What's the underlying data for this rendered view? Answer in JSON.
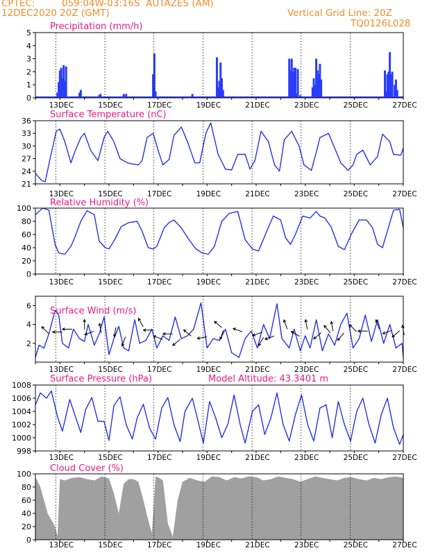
{
  "header": {
    "source": "CPTEC:",
    "location": "059:04W-03:16S  AUTAZES (AM)",
    "date": "12DEC2020 20Z (GMT)",
    "grid_note": "Vertical Grid Line: 20Z",
    "code": "TQ0126L028"
  },
  "x_dates": [
    "13DEC",
    "15DEC",
    "17DEC",
    "19DEC",
    "21DEC",
    "23DEC",
    "25DEC",
    "27DEC"
  ],
  "colors": {
    "line": "#2332e6",
    "bar": "#2a3cff",
    "cloud": "#a0a0a0",
    "title": "#e8188c",
    "header": "#f08c28"
  },
  "chart_data": [
    {
      "type": "bar",
      "title": "Precipitation (mm/h)",
      "ylim": [
        0,
        5
      ],
      "yticks": [
        0,
        1,
        2,
        3,
        4,
        5
      ],
      "x": [
        12.9,
        12.95,
        13.0,
        13.05,
        13.1,
        13.15,
        13.2,
        13.25,
        13.8,
        13.85,
        14.6,
        14.65,
        15.6,
        15.7,
        16.8,
        16.85,
        16.9,
        18.4,
        19.4,
        19.45,
        19.5,
        19.55,
        19.6,
        19.65,
        22.35,
        22.4,
        22.45,
        22.5,
        22.55,
        22.6,
        22.65,
        22.7,
        22.8,
        23.3,
        23.35,
        23.4,
        23.45,
        23.5,
        23.55,
        23.6,
        23.65,
        26.25,
        26.3,
        26.35,
        26.4,
        26.45,
        26.5,
        26.55,
        26.65,
        26.7,
        26.75
      ],
      "values": [
        0.4,
        1.2,
        2.1,
        2.3,
        1.5,
        2.5,
        1.3,
        2.4,
        0.4,
        0.6,
        0.2,
        0.3,
        0.3,
        0.3,
        1.8,
        3.4,
        0.5,
        0.3,
        3.1,
        0.8,
        1.3,
        2.7,
        1.5,
        0.6,
        3.0,
        2.1,
        3.0,
        2.0,
        2.3,
        2.3,
        0.3,
        2.2,
        0.2,
        0.8,
        1.5,
        1.0,
        3.0,
        2.1,
        1.8,
        2.6,
        1.4,
        2.1,
        0.5,
        1.8,
        2.0,
        3.5,
        1.8,
        2.0,
        1.0,
        1.4,
        0.6
      ]
    },
    {
      "type": "line",
      "title": "Surface Temperature (nC)",
      "ylim": [
        21,
        36
      ],
      "yticks": [
        21,
        24,
        27,
        30,
        33,
        36
      ],
      "x": [
        12.0,
        12.25,
        12.4,
        12.6,
        12.85,
        13.0,
        13.2,
        13.45,
        13.6,
        13.85,
        14.0,
        14.25,
        14.55,
        14.8,
        14.95,
        15.2,
        15.45,
        15.75,
        15.9,
        16.2,
        16.35,
        16.55,
        16.8,
        17.0,
        17.2,
        17.45,
        17.65,
        17.95,
        18.2,
        18.5,
        18.7,
        18.95,
        19.15,
        19.45,
        19.75,
        20.0,
        20.25,
        20.55,
        20.75,
        20.95,
        21.2,
        21.5,
        21.75,
        21.95,
        22.15,
        22.45,
        22.75,
        22.95,
        23.25,
        23.45,
        23.6,
        23.95,
        24.2,
        24.45,
        24.75,
        24.95,
        25.1,
        25.35,
        25.65,
        25.95,
        26.15,
        26.45,
        26.6,
        26.9,
        27.0
      ],
      "values": [
        23.5,
        21.8,
        21.5,
        27,
        33.5,
        34.0,
        31,
        26,
        28.5,
        32,
        33,
        29,
        26.5,
        32,
        33.5,
        31,
        27,
        26,
        25.8,
        25.5,
        26.5,
        32,
        33,
        29,
        25.5,
        26.8,
        32.5,
        34.5,
        31,
        26,
        26,
        33,
        35.5,
        28,
        24.5,
        24.3,
        28,
        28,
        24.5,
        26.5,
        33.5,
        31,
        25.5,
        24,
        31.5,
        33.5,
        30,
        25.5,
        24.2,
        28.5,
        32,
        33,
        29.5,
        26,
        24.2,
        25.5,
        28,
        29,
        25.5,
        27.5,
        32.8,
        31,
        28,
        27.8,
        29.5
      ]
    },
    {
      "type": "line",
      "title": "Relative Humidity (%)",
      "ylim": [
        0,
        100
      ],
      "yticks": [
        0,
        20,
        40,
        60,
        80,
        100
      ],
      "x": [
        12.0,
        12.3,
        12.55,
        12.8,
        12.95,
        13.2,
        13.45,
        13.6,
        13.85,
        14.1,
        14.4,
        14.6,
        14.85,
        15.0,
        15.2,
        15.5,
        15.8,
        16.15,
        16.35,
        16.6,
        16.8,
        16.95,
        17.25,
        17.45,
        17.65,
        17.95,
        18.3,
        18.55,
        18.8,
        19.05,
        19.3,
        19.6,
        19.9,
        20.25,
        20.55,
        20.85,
        21.1,
        21.4,
        21.7,
        22.0,
        22.2,
        22.4,
        22.6,
        22.9,
        23.2,
        23.45,
        23.6,
        23.8,
        24.05,
        24.35,
        24.6,
        24.9,
        25.2,
        25.5,
        25.75,
        25.95,
        26.15,
        26.35,
        26.6,
        26.85,
        27.0
      ],
      "values": [
        90,
        100,
        97,
        45,
        32,
        30,
        42,
        55,
        80,
        96,
        90,
        50,
        40,
        38,
        50,
        72,
        78,
        80,
        65,
        40,
        38,
        42,
        70,
        78,
        82,
        70,
        50,
        38,
        32,
        30,
        42,
        80,
        92,
        95,
        52,
        38,
        35,
        62,
        88,
        82,
        55,
        45,
        60,
        88,
        85,
        95,
        88,
        85,
        72,
        42,
        37,
        62,
        82,
        82,
        70,
        45,
        40,
        65,
        97,
        98,
        70
      ]
    },
    {
      "type": "line",
      "title": "Surface Wind (m/s)",
      "ylim": [
        0,
        7
      ],
      "yticks": [
        2,
        4,
        6
      ],
      "x": [
        12.0,
        12.15,
        12.35,
        12.55,
        12.8,
        12.95,
        13.1,
        13.35,
        13.55,
        13.8,
        14.0,
        14.15,
        14.4,
        14.6,
        14.8,
        15.0,
        15.2,
        15.4,
        15.6,
        15.8,
        16.05,
        16.25,
        16.5,
        16.75,
        16.95,
        17.2,
        17.45,
        17.7,
        17.95,
        18.2,
        18.45,
        18.75,
        19.0,
        19.25,
        19.5,
        19.75,
        20.0,
        20.3,
        20.55,
        20.8,
        21.05,
        21.3,
        21.55,
        21.85,
        22.05,
        22.35,
        22.55,
        22.8,
        23.0,
        23.2,
        23.45,
        23.7,
        23.95,
        24.2,
        24.45,
        24.7,
        24.95,
        25.2,
        25.45,
        25.7,
        25.95,
        26.2,
        26.45,
        26.7,
        26.95,
        27.0
      ],
      "values": [
        0.5,
        1.8,
        1.5,
        3.0,
        5.5,
        5.0,
        2.0,
        1.5,
        3.5,
        2.5,
        2.2,
        4.0,
        1.8,
        3.0,
        4.8,
        0.8,
        2.5,
        3.8,
        1.5,
        1.2,
        4.5,
        2.0,
        2.3,
        3.5,
        1.5,
        2.8,
        2.3,
        4.8,
        2.5,
        2.8,
        3.5,
        6.3,
        1.5,
        2.5,
        2.3,
        3.5,
        1.0,
        0.5,
        2.5,
        3.3,
        1.5,
        4.0,
        2.5,
        6.2,
        2.5,
        1.5,
        3.5,
        1.2,
        2.8,
        1.5,
        4.5,
        1.2,
        3.0,
        1.8,
        4.0,
        5.2,
        1.5,
        2.5,
        5.0,
        2.2,
        4.5,
        2.0,
        4.0,
        1.5,
        2.0,
        0.5
      ]
    },
    {
      "type": "line",
      "title": "Surface Pressure (hPa)",
      "annotation": "Model Altitude: 43.3401 m",
      "ylim": [
        998,
        1008
      ],
      "yticks": [
        998,
        1000,
        1002,
        1004,
        1006,
        1008
      ],
      "x": [
        12.0,
        12.2,
        12.45,
        12.65,
        12.9,
        13.1,
        13.4,
        13.65,
        13.85,
        14.05,
        14.3,
        14.55,
        14.8,
        15.0,
        15.2,
        15.45,
        15.7,
        15.95,
        16.15,
        16.4,
        16.65,
        16.9,
        17.15,
        17.4,
        17.65,
        17.9,
        18.1,
        18.4,
        18.6,
        18.85,
        19.1,
        19.35,
        19.6,
        19.85,
        20.1,
        20.35,
        20.55,
        20.85,
        21.1,
        21.35,
        21.6,
        21.85,
        22.1,
        22.35,
        22.6,
        22.85,
        23.1,
        23.35,
        23.6,
        23.85,
        24.1,
        24.35,
        24.6,
        24.85,
        25.1,
        25.35,
        25.6,
        25.85,
        26.1,
        26.35,
        26.6,
        26.85,
        27.0
      ],
      "values": [
        1005,
        1006.8,
        1006,
        1007.1,
        1003.2,
        1001,
        1005.8,
        1003,
        1000.8,
        1004.3,
        1006.1,
        1002.5,
        1002.5,
        999.6,
        1004.9,
        1006.2,
        1002,
        999.8,
        1003,
        1005.1,
        1001.5,
        999.8,
        1004.5,
        1006.1,
        1002,
        999.4,
        1004,
        1006,
        1003,
        999.2,
        1005.5,
        1003,
        1000,
        1002.1,
        1006.5,
        1002,
        999.2,
        1004,
        1005,
        1000.5,
        1003,
        1006.8,
        1002,
        999.5,
        1003.5,
        1006.5,
        1002,
        999.5,
        1004.5,
        1005,
        1000,
        1005.5,
        1002,
        999.5,
        1004,
        1006,
        1002,
        999.2,
        1003.5,
        1006,
        1001.5,
        999,
        1000.5
      ]
    },
    {
      "type": "area",
      "title": "Cloud Cover (%)",
      "ylim": [
        0,
        100
      ],
      "yticks": [
        0,
        20,
        40,
        60,
        80,
        100
      ],
      "x": [
        12.0,
        12.2,
        12.35,
        12.5,
        12.65,
        12.8,
        12.9,
        13.0,
        13.2,
        13.5,
        13.8,
        14.1,
        14.4,
        14.7,
        15.0,
        15.2,
        15.4,
        15.6,
        15.8,
        16.0,
        16.2,
        16.4,
        16.6,
        16.75,
        16.9,
        17.05,
        17.2,
        17.4,
        17.6,
        17.8,
        18.0,
        18.3,
        18.6,
        18.9,
        19.2,
        19.5,
        19.8,
        20.1,
        20.4,
        20.7,
        21.0,
        21.3,
        21.6,
        21.9,
        22.2,
        22.5,
        22.8,
        23.1,
        23.4,
        23.7,
        24.0,
        24.3,
        24.6,
        24.9,
        25.2,
        25.5,
        25.8,
        26.1,
        26.4,
        26.7,
        27.0
      ],
      "values": [
        95,
        80,
        60,
        40,
        30,
        20,
        5,
        92,
        90,
        94,
        95,
        92,
        90,
        96,
        93,
        70,
        40,
        85,
        92,
        92,
        88,
        60,
        30,
        10,
        96,
        94,
        90,
        25,
        5,
        60,
        88,
        94,
        90,
        88,
        96,
        95,
        90,
        95,
        93,
        96,
        95,
        90,
        92,
        96,
        94,
        92,
        88,
        92,
        96,
        94,
        92,
        90,
        94,
        95,
        92,
        90,
        94,
        92,
        95,
        96,
        94
      ]
    }
  ],
  "wind_arrows": [
    {
      "x": 12.4,
      "y": 3.4,
      "dir": 135
    },
    {
      "x": 12.9,
      "y": 3.2,
      "dir": 180
    },
    {
      "x": 13.3,
      "y": 3.5,
      "dir": 180
    },
    {
      "x": 14.0,
      "y": 4.0,
      "dir": 90
    },
    {
      "x": 14.2,
      "y": 3.1,
      "dir": 200
    },
    {
      "x": 14.65,
      "y": 3.6,
      "dir": 100
    },
    {
      "x": 15.25,
      "y": 3.2,
      "dir": 260
    },
    {
      "x": 15.6,
      "y": 2.2,
      "dir": 250
    },
    {
      "x": 16.3,
      "y": 4.2,
      "dir": 120
    },
    {
      "x": 16.6,
      "y": 3.4,
      "dir": 180
    },
    {
      "x": 17.0,
      "y": 2.6,
      "dir": 160
    },
    {
      "x": 17.4,
      "y": 3.0,
      "dir": 180
    },
    {
      "x": 17.75,
      "y": 2.1,
      "dir": 220
    },
    {
      "x": 18.2,
      "y": 3.1,
      "dir": 140
    },
    {
      "x": 18.8,
      "y": 2.6,
      "dir": 190
    },
    {
      "x": 19.45,
      "y": 4.0,
      "dir": 140
    },
    {
      "x": 19.6,
      "y": 2.9,
      "dir": 250
    },
    {
      "x": 20.25,
      "y": 3.4,
      "dir": 160
    },
    {
      "x": 21.05,
      "y": 3.0,
      "dir": 200
    },
    {
      "x": 21.2,
      "y": 2.2,
      "dir": 240
    },
    {
      "x": 21.55,
      "y": 2.6,
      "dir": 200
    },
    {
      "x": 22.2,
      "y": 4.0,
      "dir": 110
    },
    {
      "x": 22.6,
      "y": 3.0,
      "dir": 150
    },
    {
      "x": 23.05,
      "y": 4.0,
      "dir": 100
    },
    {
      "x": 23.5,
      "y": 2.8,
      "dir": 220
    },
    {
      "x": 23.9,
      "y": 3.5,
      "dir": 130
    },
    {
      "x": 24.1,
      "y": 3.8,
      "dir": 100
    },
    {
      "x": 24.45,
      "y": 2.7,
      "dir": 230
    },
    {
      "x": 24.95,
      "y": 3.6,
      "dir": 135
    },
    {
      "x": 25.35,
      "y": 3.3,
      "dir": 180
    },
    {
      "x": 25.95,
      "y": 4.0,
      "dir": 110
    },
    {
      "x": 26.35,
      "y": 3.2,
      "dir": 200
    },
    {
      "x": 26.7,
      "y": 3.0,
      "dir": 220
    },
    {
      "x": 27.0,
      "y": 3.4,
      "dir": 100
    }
  ]
}
